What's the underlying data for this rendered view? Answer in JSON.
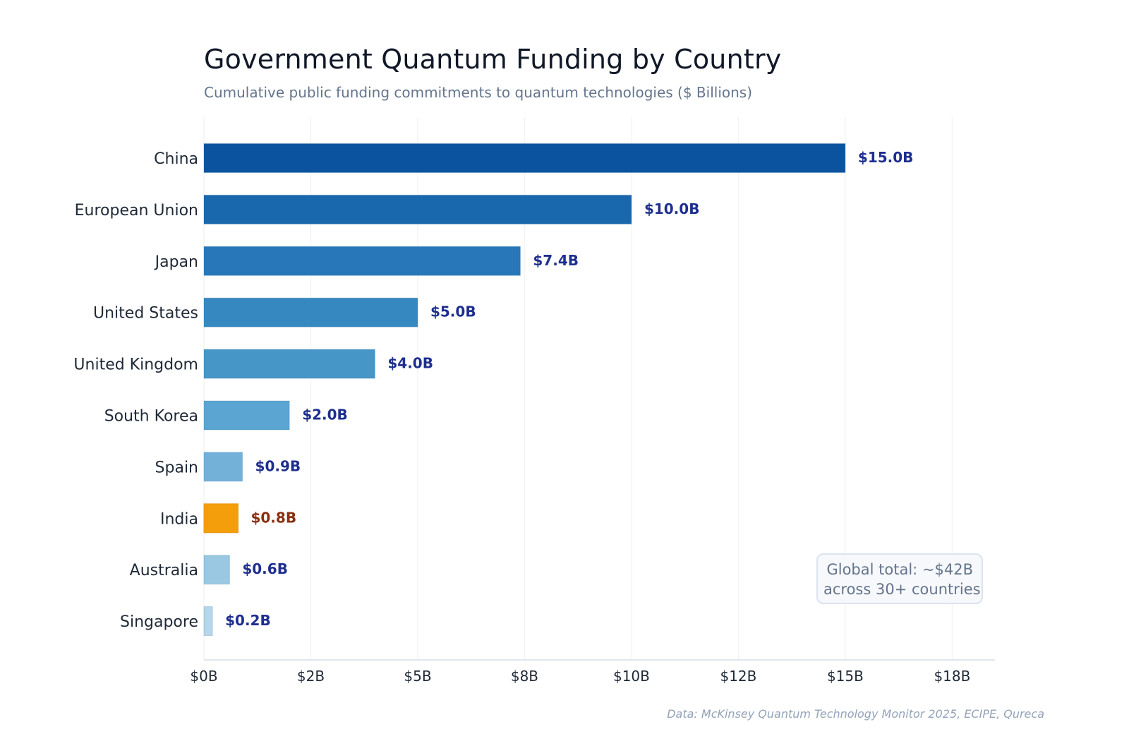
{
  "colors": {
    "title": "#111827",
    "subtitle": "#64748b",
    "label": "#1f2937",
    "value_label": "#1e2f8f",
    "highlight_value_label": "#8b2f10",
    "grid": "#f1f3f6",
    "axis": "#d7dde6",
    "source": "#94a3b8"
  },
  "callout": {
    "line1": "Global total: ~$42B",
    "line2": "across 30+ countries"
  },
  "source": "Data: McKinsey Quantum Technology Monitor 2025, ECIPE, Qureca",
  "chart_data": {
    "type": "bar",
    "orientation": "horizontal",
    "title": "Government Quantum Funding by Country",
    "subtitle": "Cumulative public funding commitments to quantum technologies ($ Billions)",
    "xlabel": "",
    "ylabel": "",
    "xlim": [
      0,
      18.5
    ],
    "xticks": [
      0,
      2.5,
      5,
      7.5,
      10,
      12.5,
      15,
      17.5
    ],
    "xtick_labels": [
      "$0B",
      "$2B",
      "$5B",
      "$8B",
      "$10B",
      "$12B",
      "$15B",
      "$18B"
    ],
    "categories": [
      "China",
      "European Union",
      "Japan",
      "United States",
      "United Kingdom",
      "South Korea",
      "Spain",
      "India",
      "Australia",
      "Singapore"
    ],
    "values": [
      15.0,
      10.0,
      7.4,
      5.0,
      4.0,
      2.0,
      0.9,
      0.8,
      0.6,
      0.2
    ],
    "value_labels": [
      "$15.0B",
      "$10.0B",
      "$7.4B",
      "$5.0B",
      "$4.0B",
      "$2.0B",
      "$0.9B",
      "$0.8B",
      "$0.6B",
      "$0.2B"
    ],
    "bar_colors": [
      "#0b539f",
      "#1967ad",
      "#2878b9",
      "#3588c0",
      "#4696c8",
      "#5aa5d2",
      "#73b1d9",
      "#f59e0b",
      "#9ac8e2",
      "#b7d6ea"
    ],
    "highlight_category": "India",
    "grid": true,
    "legend": "none"
  }
}
